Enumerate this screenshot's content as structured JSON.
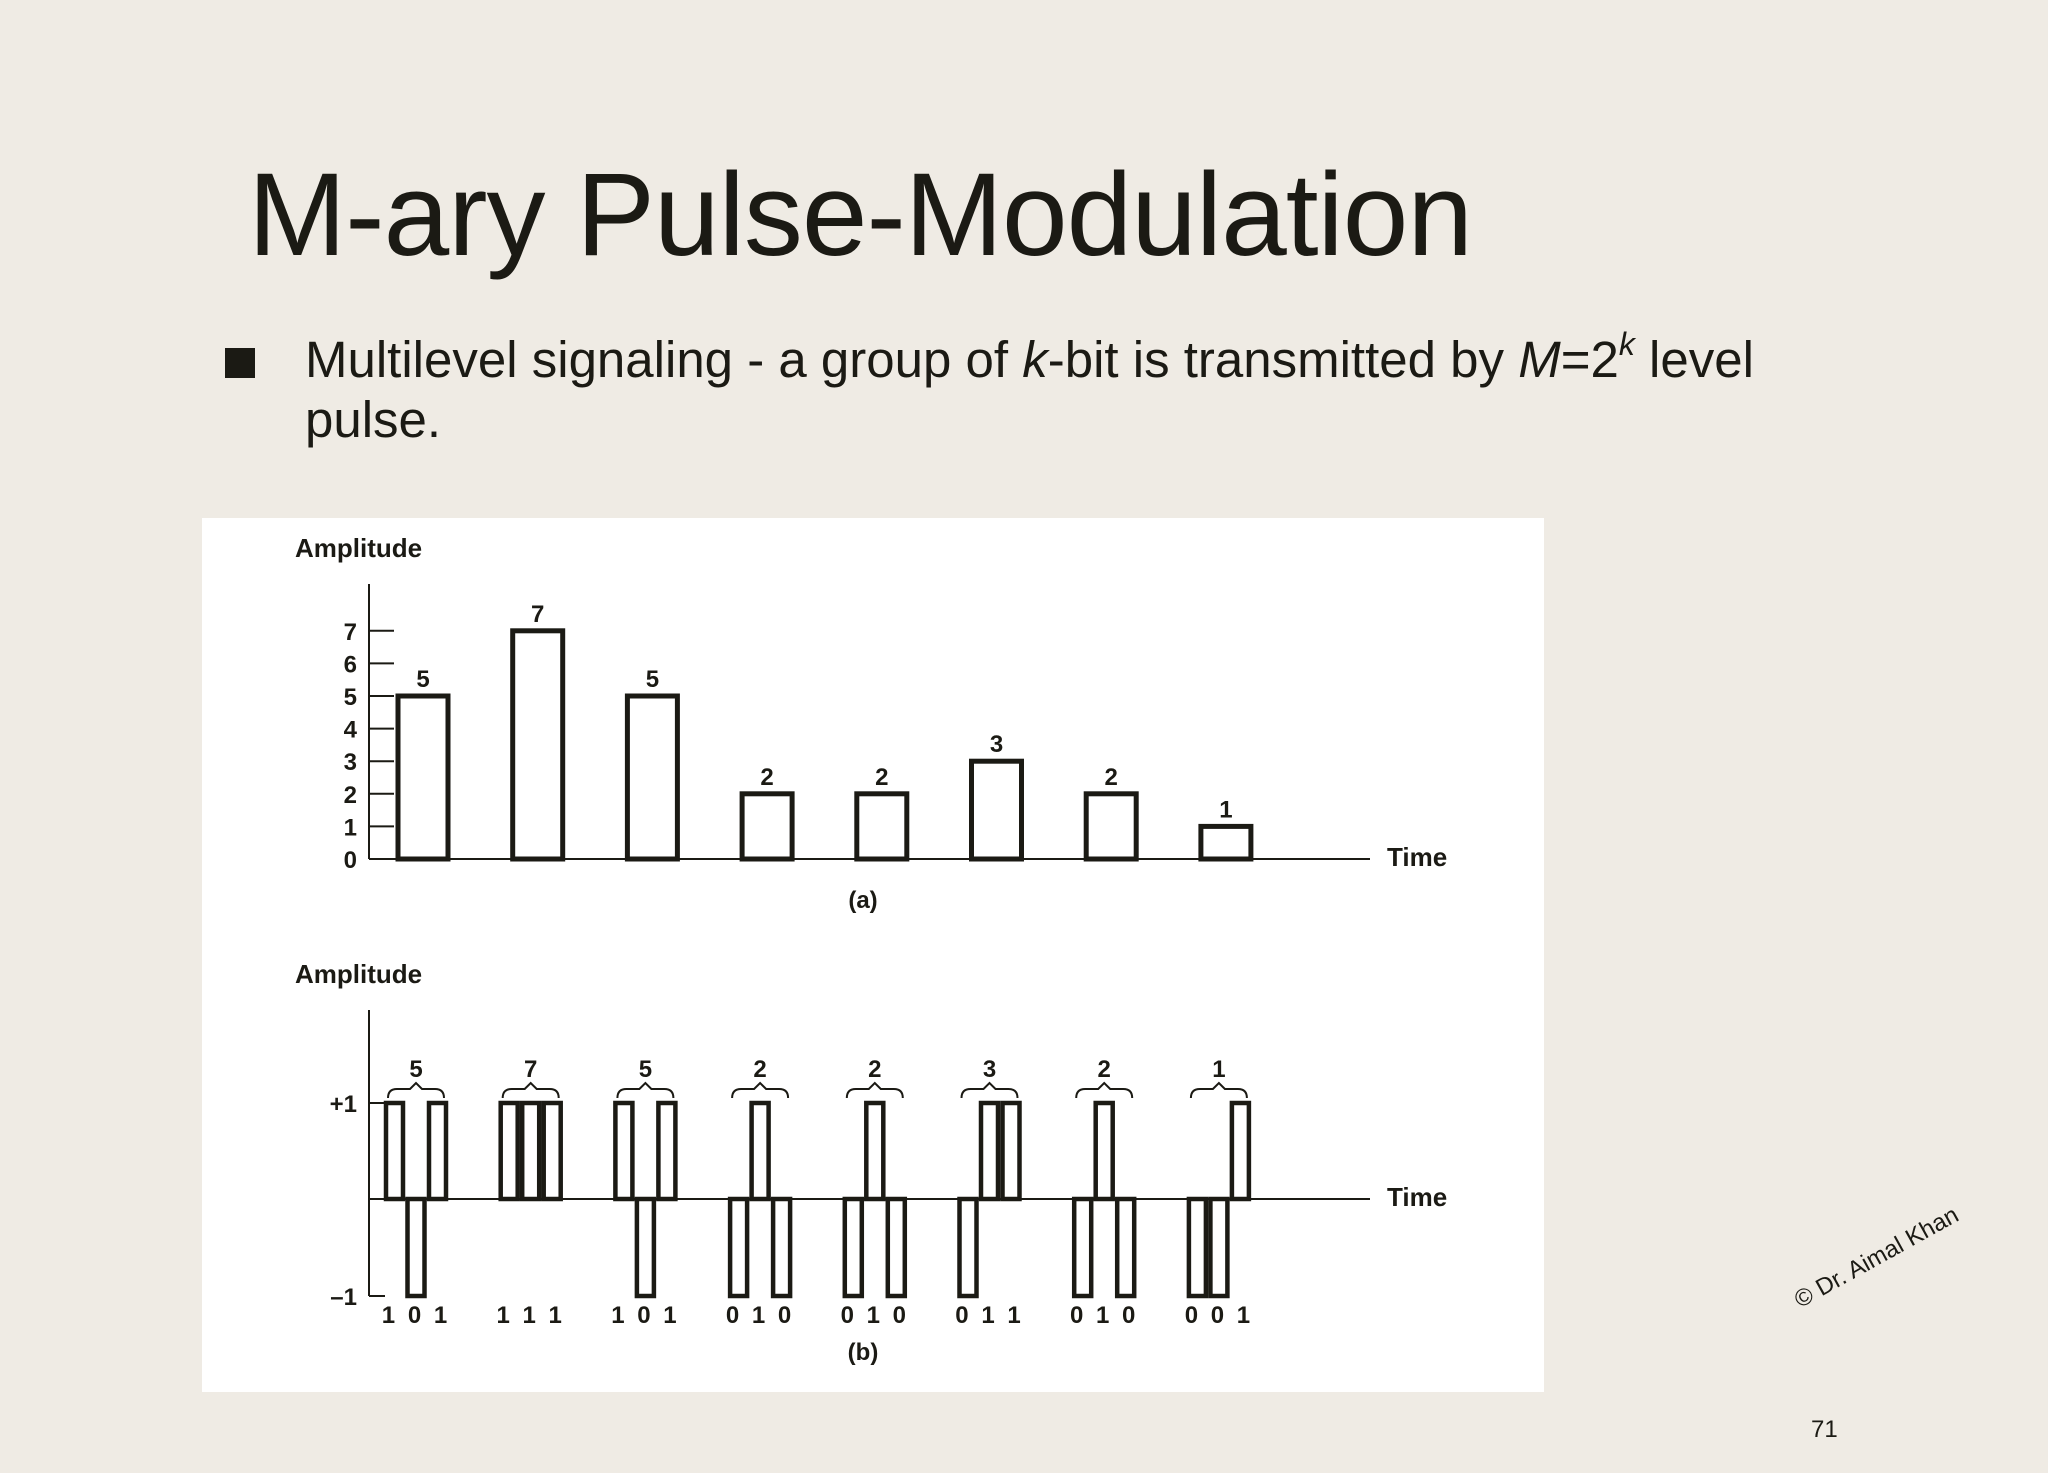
{
  "slide": {
    "title": "M-ary Pulse-Modulation",
    "bullet": {
      "part1": "Multilevel signaling - a group of ",
      "k": "k",
      "part2": "-bit is transmitted by ",
      "M": "M",
      "part3": "=2",
      "sup": "k",
      "part4": " level pulse."
    },
    "watermark": "© Dr. Aimal Khan",
    "page_number": "71"
  },
  "chart_data": [
    {
      "type": "bar",
      "subplot_label": "(a)",
      "ylabel": "Amplitude",
      "xlabel": "Time",
      "yticks": [
        "0",
        "1",
        "2",
        "3",
        "4",
        "5",
        "6",
        "7"
      ],
      "ylim": [
        0,
        7
      ],
      "values": [
        5,
        7,
        5,
        2,
        2,
        3,
        2,
        1
      ],
      "value_labels": [
        "5",
        "7",
        "5",
        "2",
        "2",
        "3",
        "2",
        "1"
      ]
    },
    {
      "type": "line",
      "subplot_label": "(b)",
      "ylabel": "Amplitude",
      "xlabel": "Time",
      "yticks": [
        "+1",
        "–1"
      ],
      "ylim": [
        -1,
        1
      ],
      "group_labels": [
        "5",
        "7",
        "5",
        "2",
        "2",
        "3",
        "2",
        "1"
      ],
      "bit_groups": [
        "1 0 1",
        "1 1 1",
        "1 0 1",
        "0 1 0",
        "0 1 0",
        "0 1 1",
        "0 1 0",
        "0 0 1"
      ],
      "bits": [
        [
          1,
          0,
          1
        ],
        [
          1,
          1,
          1
        ],
        [
          1,
          0,
          1
        ],
        [
          0,
          1,
          0
        ],
        [
          0,
          1,
          0
        ],
        [
          0,
          1,
          1
        ],
        [
          0,
          1,
          0
        ],
        [
          0,
          0,
          1
        ]
      ]
    }
  ]
}
